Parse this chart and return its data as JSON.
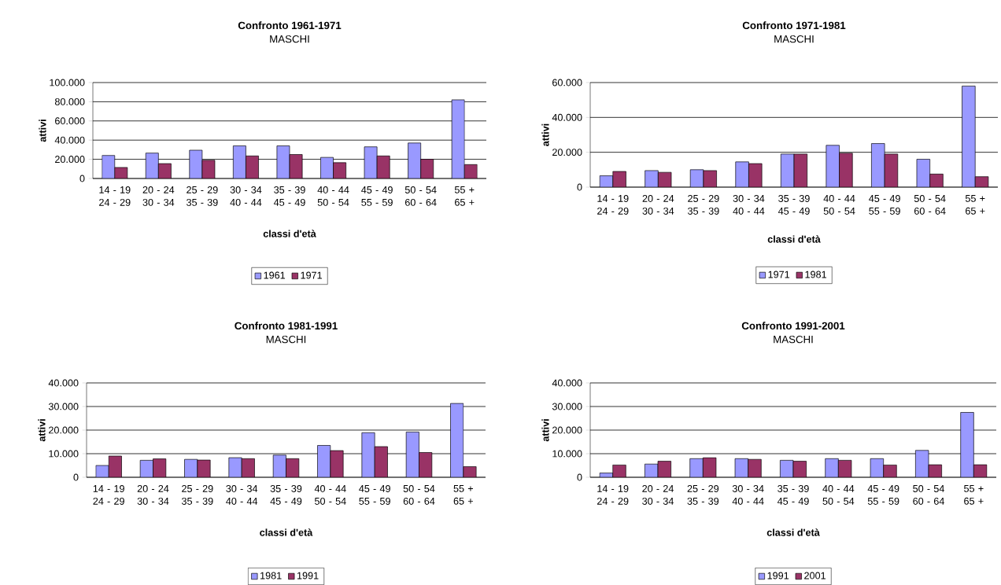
{
  "chart_data": [
    {
      "type": "bar",
      "title": "Confronto 1961-1971",
      "subtitle": "MASCHI",
      "xlabel": "classi d'età",
      "ylabel": "attivi",
      "categories": [
        "14 - 19\n24 - 29",
        "20 - 24\n30 - 34",
        "25 - 29\n35 - 39",
        "30 - 34\n40 - 44",
        "35 - 39\n45 - 49",
        "40 - 44\n50 - 54",
        "45 - 49\n55 - 59",
        "50 - 54\n60 - 64",
        "55 +\n65 +"
      ],
      "series": [
        {
          "name": "1961",
          "color": "#9999ff",
          "values": [
            24000,
            26500,
            29500,
            34000,
            34000,
            22000,
            33000,
            37000,
            82000
          ]
        },
        {
          "name": "1971",
          "color": "#993366",
          "values": [
            11500,
            15500,
            19000,
            23500,
            25000,
            16500,
            23500,
            20000,
            14500
          ]
        }
      ],
      "ylim": [
        0,
        100000
      ],
      "yticks": [
        0,
        {
          "value": 20000,
          "label": "20.000"
        },
        {
          "value": 40000,
          "label": "40.000"
        },
        {
          "value": 60000,
          "label": "60.000"
        },
        {
          "value": 80000,
          "label": "80.000"
        },
        {
          "value": 100000,
          "label": "100.000"
        }
      ],
      "grid": "y",
      "legend": "bottom"
    },
    {
      "type": "bar",
      "title": "Confronto 1971-1981",
      "subtitle": "MASCHI",
      "xlabel": "classi d'età",
      "ylabel": "attivi",
      "categories": [
        "14 - 19\n24 - 29",
        "20 - 24\n30 - 34",
        "25 - 29\n35 - 39",
        "30 - 34\n40 - 44",
        "35 - 39\n45 - 49",
        "40 - 44\n50 - 54",
        "45 - 49\n55 - 59",
        "50 - 54\n60 - 64",
        "55 +\n65 +"
      ],
      "series": [
        {
          "name": "1971",
          "color": "#9999ff",
          "values": [
            6500,
            9500,
            10000,
            14500,
            19000,
            24000,
            25000,
            16000,
            58000
          ]
        },
        {
          "name": "1981",
          "color": "#993366",
          "values": [
            9000,
            8500,
            9500,
            13500,
            19000,
            19500,
            19000,
            7500,
            6000
          ]
        }
      ],
      "ylim": [
        0,
        60000
      ],
      "yticks": [
        0,
        {
          "value": 20000,
          "label": "20.000"
        },
        {
          "value": 40000,
          "label": "40.000"
        },
        {
          "value": 60000,
          "label": "60.000"
        }
      ],
      "grid": "y",
      "legend": "bottom"
    },
    {
      "type": "bar",
      "title": "Confronto 1981-1991",
      "subtitle": "MASCHI",
      "xlabel": "classi d'età",
      "ylabel": "attivi",
      "categories": [
        "14 - 19\n24 - 29",
        "20 - 24\n30 - 34",
        "25 - 29\n35 - 39",
        "30 - 34\n40 - 44",
        "35 - 39\n45 - 49",
        "40 - 44\n50 - 54",
        "45 - 49\n55 - 59",
        "50 - 54\n60 - 64",
        "55 +\n65 +"
      ],
      "series": [
        {
          "name": "1981",
          "color": "#9999ff",
          "values": [
            5000,
            7200,
            7600,
            8300,
            9400,
            13500,
            18900,
            19200,
            31300
          ]
        },
        {
          "name": "1991",
          "color": "#993366",
          "values": [
            9000,
            7800,
            7300,
            7900,
            7900,
            11300,
            13000,
            10500,
            4500
          ]
        }
      ],
      "ylim": [
        0,
        40000
      ],
      "yticks": [
        0,
        {
          "value": 10000,
          "label": "10.000"
        },
        {
          "value": 20000,
          "label": "20.000"
        },
        {
          "value": 30000,
          "label": "30.000"
        },
        {
          "value": 40000,
          "label": "40.000"
        }
      ],
      "grid": "y",
      "legend": "bottom"
    },
    {
      "type": "bar",
      "title": "Confronto 1991-2001",
      "subtitle": "MASCHI",
      "xlabel": "classi d'età",
      "ylabel": "attivi",
      "categories": [
        "14 - 19\n24 - 29",
        "20 - 24\n30 - 34",
        "25 - 29\n35 - 39",
        "30 - 34\n40 - 44",
        "35 - 39\n45 - 49",
        "40 - 44\n50 - 54",
        "45 - 49\n55 - 59",
        "50 - 54\n60 - 64",
        "55 +\n65 +"
      ],
      "series": [
        {
          "name": "1991",
          "color": "#9999ff",
          "values": [
            1800,
            5600,
            7900,
            7900,
            7200,
            7900,
            7900,
            11400,
            27500
          ]
        },
        {
          "name": "2001",
          "color": "#993366",
          "values": [
            5200,
            6800,
            8300,
            7600,
            6800,
            7200,
            5200,
            5300,
            5300
          ]
        }
      ],
      "ylim": [
        0,
        40000
      ],
      "yticks": [
        0,
        {
          "value": 10000,
          "label": "10.000"
        },
        {
          "value": 20000,
          "label": "20.000"
        },
        {
          "value": 30000,
          "label": "30.000"
        },
        {
          "value": 40000,
          "label": "40.000"
        }
      ],
      "grid": "y",
      "legend": "bottom"
    }
  ]
}
